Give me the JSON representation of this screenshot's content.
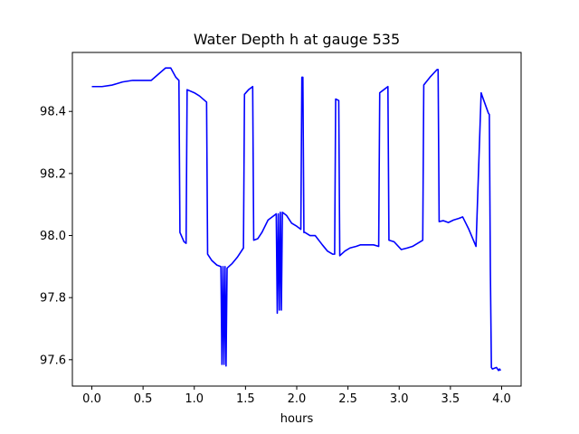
{
  "chart_data": {
    "type": "line",
    "title": "Water Depth h at gauge 535",
    "xlabel": "hours",
    "ylabel": "",
    "xlim": [
      -0.19,
      4.19
    ],
    "ylim": [
      97.515,
      98.59
    ],
    "grid": false,
    "x_ticks": [
      0.0,
      0.5,
      1.0,
      1.5,
      2.0,
      2.5,
      3.0,
      3.5,
      4.0
    ],
    "x_tick_labels": [
      "0.0",
      "0.5",
      "1.0",
      "1.5",
      "2.0",
      "2.5",
      "3.0",
      "3.5",
      "4.0"
    ],
    "y_ticks": [
      97.6,
      97.8,
      98.0,
      98.2,
      98.4
    ],
    "y_tick_labels": [
      "97.6",
      "97.8",
      "98.0",
      "98.2",
      "98.4"
    ],
    "series": [
      {
        "color": "#0000ff",
        "x": [
          0.0,
          0.1,
          0.2,
          0.3,
          0.4,
          0.5,
          0.58,
          0.65,
          0.72,
          0.77,
          0.82,
          0.85,
          0.86,
          0.9,
          0.92,
          0.93,
          1.0,
          1.05,
          1.12,
          1.13,
          1.17,
          1.22,
          1.26,
          1.27,
          1.28,
          1.29,
          1.3,
          1.31,
          1.32,
          1.37,
          1.42,
          1.48,
          1.49,
          1.53,
          1.57,
          1.58,
          1.62,
          1.66,
          1.72,
          1.78,
          1.8,
          1.81,
          1.82,
          1.83,
          1.84,
          1.85,
          1.86,
          1.9,
          1.95,
          2.0,
          2.04,
          2.05,
          2.06,
          2.07,
          2.08,
          2.13,
          2.18,
          2.25,
          2.3,
          2.35,
          2.37,
          2.38,
          2.41,
          2.42,
          2.47,
          2.52,
          2.58,
          2.62,
          2.68,
          2.75,
          2.8,
          2.81,
          2.85,
          2.89,
          2.9,
          2.95,
          3.02,
          3.08,
          3.13,
          3.23,
          3.24,
          3.3,
          3.37,
          3.38,
          3.39,
          3.43,
          3.48,
          3.53,
          3.58,
          3.62,
          3.68,
          3.75,
          3.8,
          3.81,
          3.87,
          3.88,
          3.89,
          3.9,
          3.91,
          3.95,
          3.97,
          3.98,
          3.99
        ],
        "y": [
          98.48,
          98.48,
          98.485,
          98.495,
          98.5,
          98.5,
          98.5,
          98.52,
          98.54,
          98.54,
          98.51,
          98.5,
          98.01,
          97.98,
          97.975,
          98.47,
          98.46,
          98.45,
          98.43,
          97.94,
          97.92,
          97.905,
          97.9,
          97.585,
          97.9,
          97.585,
          97.9,
          97.58,
          97.895,
          97.91,
          97.93,
          97.96,
          98.455,
          98.47,
          98.48,
          97.985,
          97.99,
          98.01,
          98.05,
          98.065,
          98.07,
          97.75,
          98.07,
          97.76,
          98.075,
          97.76,
          98.075,
          98.065,
          98.04,
          98.03,
          98.02,
          98.51,
          98.51,
          98.01,
          98.01,
          98.0,
          98.0,
          97.97,
          97.95,
          97.94,
          97.94,
          98.44,
          98.435,
          97.935,
          97.95,
          97.96,
          97.965,
          97.97,
          97.97,
          97.97,
          97.965,
          98.46,
          98.47,
          98.48,
          97.985,
          97.98,
          97.955,
          97.96,
          97.965,
          97.985,
          98.485,
          98.51,
          98.535,
          98.535,
          98.045,
          98.048,
          98.042,
          98.05,
          98.055,
          98.06,
          98.02,
          97.965,
          98.46,
          98.45,
          98.395,
          98.39,
          97.89,
          97.575,
          97.57,
          97.575,
          97.565,
          97.57,
          97.565
        ]
      }
    ]
  }
}
